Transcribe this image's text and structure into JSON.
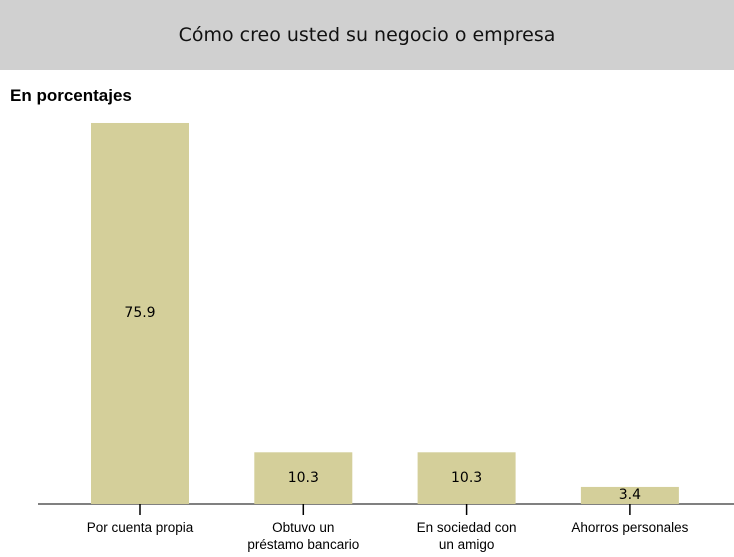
{
  "chart_data": {
    "type": "bar",
    "title": "Cómo creo usted su negocio o empresa",
    "subtitle": "En porcentajes",
    "categories": [
      "Por cuenta propia",
      "Obtuvo un préstamo bancario",
      "En sociedad con un amigo",
      "Ahorros personales"
    ],
    "values": [
      75.9,
      10.3,
      10.3,
      3.4
    ],
    "color": "#d4cf9a"
  }
}
